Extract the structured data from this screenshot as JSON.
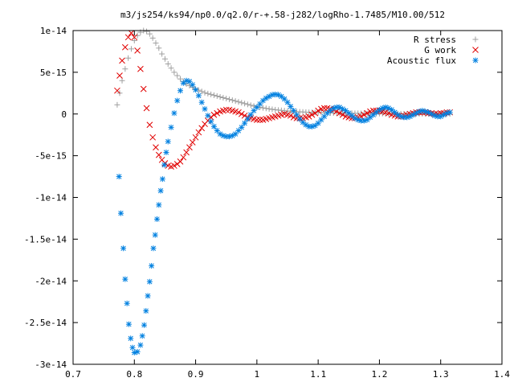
{
  "chart_data": {
    "type": "scatter",
    "title": "m3/js254/ks94/np0.0/q2.0/r-+.58-j282/logRho-1.7485/M10.00/512",
    "xlabel": "",
    "ylabel": "",
    "xlim": [
      0.7,
      1.4
    ],
    "ylim": [
      -3e-14,
      1e-14
    ],
    "x_ticks": [
      0.7,
      0.8,
      0.9,
      1.0,
      1.1,
      1.2,
      1.3,
      1.4
    ],
    "x_tick_labels": [
      "0.7",
      "0.8",
      "0.9",
      "1",
      "1.1",
      "1.2",
      "1.3",
      "1.4"
    ],
    "y_ticks": [
      1e-14,
      5e-15,
      0,
      -5e-15,
      -1e-14,
      -1.5e-14,
      -2e-14,
      -2.5e-14,
      -3e-14
    ],
    "y_tick_labels": [
      "1e-14",
      "5e-15",
      "0",
      "-5e-15",
      "-1e-14",
      "-1.5e-14",
      "-2e-14",
      "-2.5e-14",
      "-3e-14"
    ],
    "grid": false,
    "legend_position": "top-right",
    "series": [
      {
        "name": "R stress",
        "marker": "plus",
        "color": "#a0a0a0",
        "x": [
          0.772,
          0.776,
          0.78,
          0.785,
          0.79,
          0.795,
          0.8,
          0.805,
          0.81,
          0.815,
          0.82,
          0.825,
          0.83,
          0.835,
          0.84,
          0.845,
          0.85,
          0.855,
          0.86,
          0.865,
          0.87,
          0.875,
          0.88,
          0.885,
          0.89,
          0.895,
          0.9,
          0.905,
          0.91,
          0.915,
          0.92,
          0.925,
          0.93,
          0.935,
          0.94,
          0.945,
          0.95,
          0.955,
          0.96,
          0.965,
          0.97,
          0.975,
          0.98,
          0.985,
          0.99,
          0.995,
          1.0,
          1.005,
          1.01,
          1.015,
          1.02,
          1.025,
          1.03,
          1.035,
          1.04,
          1.045,
          1.05,
          1.055,
          1.06,
          1.065,
          1.07,
          1.075,
          1.08,
          1.085,
          1.09,
          1.095,
          1.1,
          1.105,
          1.11,
          1.115,
          1.12,
          1.125,
          1.13,
          1.135,
          1.14,
          1.145,
          1.15,
          1.155,
          1.16,
          1.165,
          1.17,
          1.175,
          1.18,
          1.185,
          1.19,
          1.195,
          1.2,
          1.205,
          1.21,
          1.215,
          1.22,
          1.225,
          1.23,
          1.235,
          1.24,
          1.245,
          1.25,
          1.255,
          1.26,
          1.265,
          1.27,
          1.275,
          1.28,
          1.285,
          1.29,
          1.295,
          1.3,
          1.305,
          1.31,
          1.315
        ],
        "y": [
          1.1e-15,
          2.5e-15,
          4e-15,
          5.4e-15,
          6.7e-15,
          7.8e-15,
          8.8e-15,
          9.4e-15,
          9.8e-15,
          1e-14,
          9.9e-15,
          9.6e-15,
          9.1e-15,
          8.5e-15,
          7.9e-15,
          7.2e-15,
          6.6e-15,
          6e-15,
          5.5e-15,
          5e-15,
          4.6e-15,
          4.2e-15,
          3.9e-15,
          3.6e-15,
          3.4e-15,
          3.2e-15,
          3e-15,
          2.85e-15,
          2.7e-15,
          2.55e-15,
          2.45e-15,
          2.35e-15,
          2.25e-15,
          2.15e-15,
          2.05e-15,
          1.95e-15,
          1.85e-15,
          1.75e-15,
          1.65e-15,
          1.55e-15,
          1.45e-15,
          1.35e-15,
          1.25e-15,
          1.15e-15,
          1.05e-15,
          9.5e-16,
          8.7e-16,
          8e-16,
          7.3e-16,
          6.7e-16,
          6.1e-16,
          5.6e-16,
          5.1e-16,
          4.7e-16,
          4.3e-16,
          3.9e-16,
          3.6e-16,
          3.3e-16,
          3e-16,
          2.8e-16,
          2.6e-16,
          2.4e-16,
          2.2e-16,
          2e-16,
          1.9e-16,
          1.8e-16,
          1.7e-16,
          1.6e-16,
          1.5e-16,
          1.4e-16,
          1.3e-16,
          1.2e-16,
          1.2e-16,
          1.1e-16,
          1e-16,
          1e-16,
          9e-17,
          9e-17,
          8e-17,
          8e-17,
          7e-17,
          7e-17,
          6e-17,
          6e-17,
          6e-17,
          5e-17,
          5e-17,
          5e-17,
          4e-17,
          4e-17,
          4e-17,
          4e-17,
          3e-17,
          3e-17,
          3e-17,
          3e-17,
          3e-17,
          2e-17,
          2e-17,
          2e-17,
          2e-17,
          2e-17,
          2e-17,
          2e-17,
          1e-17,
          1e-17,
          1e-17,
          1e-17,
          1e-17,
          1e-17
        ]
      },
      {
        "name": "G work",
        "marker": "cross",
        "color": "#e00000",
        "x": [
          0.772,
          0.776,
          0.78,
          0.785,
          0.79,
          0.795,
          0.8,
          0.805,
          0.81,
          0.815,
          0.82,
          0.825,
          0.83,
          0.835,
          0.84,
          0.845,
          0.85,
          0.855,
          0.86,
          0.865,
          0.87,
          0.875,
          0.88,
          0.885,
          0.89,
          0.895,
          0.9,
          0.905,
          0.91,
          0.915,
          0.92,
          0.925,
          0.93,
          0.935,
          0.94,
          0.945,
          0.95,
          0.955,
          0.96,
          0.965,
          0.97,
          0.975,
          0.98,
          0.985,
          0.99,
          0.995,
          1.0,
          1.005,
          1.01,
          1.015,
          1.02,
          1.025,
          1.03,
          1.035,
          1.04,
          1.045,
          1.05,
          1.055,
          1.06,
          1.065,
          1.07,
          1.075,
          1.08,
          1.085,
          1.09,
          1.095,
          1.1,
          1.105,
          1.11,
          1.115,
          1.12,
          1.125,
          1.13,
          1.135,
          1.14,
          1.145,
          1.15,
          1.155,
          1.16,
          1.165,
          1.17,
          1.175,
          1.18,
          1.185,
          1.19,
          1.195,
          1.2,
          1.205,
          1.21,
          1.215,
          1.22,
          1.225,
          1.23,
          1.235,
          1.24,
          1.245,
          1.25,
          1.255,
          1.26,
          1.265,
          1.27,
          1.275,
          1.28,
          1.285,
          1.29,
          1.295,
          1.3,
          1.305,
          1.31,
          1.315
        ],
        "y": [
          2.8e-15,
          4.6e-15,
          6.4e-15,
          8e-15,
          9.2e-15,
          9.7e-15,
          9.2e-15,
          7.6e-15,
          5.4e-15,
          3e-15,
          7e-16,
          -1.3e-15,
          -2.8e-15,
          -4e-15,
          -4.9e-15,
          -5.5e-15,
          -5.9e-15,
          -6.2e-15,
          -6.3e-15,
          -6.2e-15,
          -6e-15,
          -5.7e-15,
          -5.2e-15,
          -4.6e-15,
          -4e-15,
          -3.4e-15,
          -2.8e-15,
          -2.2e-15,
          -1.7e-15,
          -1.2e-15,
          -8e-16,
          -4e-16,
          -1e-16,
          1e-16,
          3e-16,
          4e-16,
          5e-16,
          5e-16,
          4e-16,
          3e-16,
          2e-16,
          0,
          -2e-16,
          -4e-16,
          -5e-16,
          -6e-16,
          -7e-16,
          -7e-16,
          -7e-16,
          -6e-16,
          -5e-16,
          -4e-16,
          -3e-16,
          -2e-16,
          -1e-16,
          0,
          -1e-16,
          -2e-16,
          -4e-16,
          -5e-16,
          -5e-16,
          -5e-16,
          -4e-16,
          -3e-16,
          -1e-16,
          1e-16,
          4e-16,
          6e-16,
          7e-16,
          7e-16,
          6e-16,
          5e-16,
          3e-16,
          1e-16,
          -1e-16,
          -3e-16,
          -4e-16,
          -5e-16,
          -5e-16,
          -4e-16,
          -3e-16,
          -1e-16,
          1e-16,
          3e-16,
          4e-16,
          4e-16,
          4e-16,
          3e-16,
          2e-16,
          1e-16,
          -1e-16,
          -2e-16,
          -3e-16,
          -3e-16,
          -2e-16,
          -1e-16,
          0,
          1e-16,
          2e-16,
          2e-16,
          2e-16,
          2e-16,
          1e-16,
          1e-16,
          0,
          0,
          1e-16,
          1e-16,
          2e-16,
          2e-16
        ]
      },
      {
        "name": "Acoustic flux",
        "marker": "star",
        "color": "#0080e0",
        "x": [
          0.775,
          0.778,
          0.782,
          0.785,
          0.788,
          0.791,
          0.794,
          0.797,
          0.8,
          0.805,
          0.81,
          0.813,
          0.816,
          0.819,
          0.822,
          0.825,
          0.828,
          0.831,
          0.834,
          0.837,
          0.84,
          0.843,
          0.846,
          0.849,
          0.852,
          0.855,
          0.86,
          0.865,
          0.87,
          0.875,
          0.88,
          0.885,
          0.89,
          0.895,
          0.9,
          0.905,
          0.91,
          0.915,
          0.92,
          0.925,
          0.93,
          0.935,
          0.94,
          0.945,
          0.95,
          0.955,
          0.96,
          0.965,
          0.97,
          0.975,
          0.98,
          0.985,
          0.99,
          0.995,
          1.0,
          1.005,
          1.01,
          1.015,
          1.02,
          1.025,
          1.03,
          1.035,
          1.04,
          1.045,
          1.05,
          1.055,
          1.06,
          1.065,
          1.07,
          1.075,
          1.08,
          1.085,
          1.09,
          1.095,
          1.1,
          1.105,
          1.11,
          1.115,
          1.12,
          1.125,
          1.13,
          1.135,
          1.14,
          1.145,
          1.15,
          1.155,
          1.16,
          1.165,
          1.17,
          1.175,
          1.18,
          1.185,
          1.19,
          1.195,
          1.2,
          1.205,
          1.21,
          1.215,
          1.22,
          1.225,
          1.23,
          1.235,
          1.24,
          1.245,
          1.25,
          1.255,
          1.26,
          1.265,
          1.27,
          1.275,
          1.28,
          1.285,
          1.29,
          1.295,
          1.3,
          1.305,
          1.31,
          1.315
        ],
        "y": [
          -7.5e-15,
          -1.19e-14,
          -1.61e-14,
          -1.98e-14,
          -2.27e-14,
          -2.52e-14,
          -2.69e-14,
          -2.8e-14,
          -2.86e-14,
          -2.85e-14,
          -2.77e-14,
          -2.66e-14,
          -2.53e-14,
          -2.36e-14,
          -2.18e-14,
          -2.01e-14,
          -1.82e-14,
          -1.61e-14,
          -1.45e-14,
          -1.26e-14,
          -1.09e-14,
          -9.2e-15,
          -7.8e-15,
          -6.1e-15,
          -4.6e-15,
          -3.3e-15,
          -1.6e-15,
          1e-16,
          1.6e-15,
          2.8e-15,
          3.7e-15,
          4e-15,
          3.9e-15,
          3.5e-15,
          2.9e-15,
          2.2e-15,
          1.4e-15,
          6e-16,
          -2e-16,
          -9e-16,
          -1.5e-15,
          -2e-15,
          -2.4e-15,
          -2.6e-15,
          -2.7e-15,
          -2.7e-15,
          -2.6e-15,
          -2.4e-15,
          -2e-15,
          -1.6e-15,
          -1.1e-15,
          -6e-16,
          -1e-16,
          4e-16,
          8e-16,
          1.2e-15,
          1.6e-15,
          1.9e-15,
          2.1e-15,
          2.3e-15,
          2.35e-15,
          2.3e-15,
          2.1e-15,
          1.8e-15,
          1.4e-15,
          9e-16,
          4e-16,
          -1e-16,
          -6e-16,
          -1e-15,
          -1.3e-15,
          -1.5e-15,
          -1.5e-15,
          -1.4e-15,
          -1.1e-15,
          -7e-16,
          -3e-16,
          1e-16,
          4e-16,
          7e-16,
          8e-16,
          8e-16,
          6e-16,
          4e-16,
          1e-16,
          -2e-16,
          -5e-16,
          -7e-16,
          -8e-16,
          -8e-16,
          -7e-16,
          -4e-16,
          -1e-16,
          2e-16,
          5e-16,
          7e-16,
          8e-16,
          7e-16,
          5e-16,
          2e-16,
          -1e-16,
          -3e-16,
          -4e-16,
          -4e-16,
          -3e-16,
          -1e-16,
          1e-16,
          3e-16,
          4e-16,
          3e-16,
          2e-16,
          0,
          -2e-16,
          -3e-16,
          -3e-16,
          -1e-16,
          1e-16,
          2e-16
        ]
      }
    ]
  }
}
